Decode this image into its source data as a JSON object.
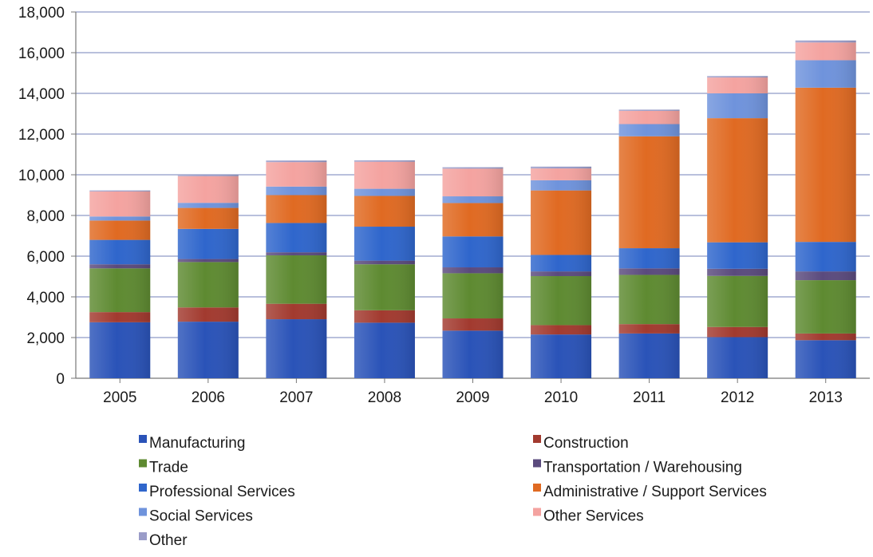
{
  "chart_data": {
    "type": "bar",
    "stacked": true,
    "categories": [
      "2005",
      "2006",
      "2007",
      "2008",
      "2009",
      "2010",
      "2011",
      "2012",
      "2013"
    ],
    "series": [
      {
        "name": "Manufacturing",
        "color": "#2a53b8",
        "values": [
          2750,
          2780,
          2900,
          2730,
          2340,
          2150,
          2200,
          2020,
          1870
        ]
      },
      {
        "name": "Construction",
        "color": "#a23a2f",
        "values": [
          500,
          700,
          760,
          610,
          600,
          460,
          460,
          500,
          330
        ]
      },
      {
        "name": "Trade",
        "color": "#5e8a31",
        "values": [
          2150,
          2230,
          2380,
          2260,
          2220,
          2410,
          2420,
          2510,
          2620
        ]
      },
      {
        "name": "Transportation / Warehousing",
        "color": "#5a4a7d",
        "values": [
          200,
          150,
          150,
          180,
          290,
          230,
          320,
          350,
          430
        ]
      },
      {
        "name": "Professional Services",
        "color": "#2f66cc",
        "values": [
          1200,
          1480,
          1440,
          1670,
          1520,
          810,
          990,
          1300,
          1450
        ]
      },
      {
        "name": "Administrative / Support Services",
        "color": "#e06a22",
        "values": [
          950,
          1030,
          1370,
          1510,
          1640,
          3170,
          5500,
          6100,
          7580
        ]
      },
      {
        "name": "Social Services",
        "color": "#6f93dc",
        "values": [
          200,
          250,
          420,
          350,
          330,
          500,
          600,
          1220,
          1350
        ]
      },
      {
        "name": "Other Services",
        "color": "#f4a3a0",
        "values": [
          1230,
          1310,
          1200,
          1330,
          1360,
          580,
          650,
          780,
          870
        ]
      },
      {
        "name": "Other",
        "color": "#9a9cc8",
        "values": [
          50,
          70,
          80,
          70,
          70,
          90,
          60,
          70,
          100
        ]
      }
    ],
    "ylim": [
      0,
      18000
    ],
    "yticks": [
      "0",
      "2,000",
      "4,000",
      "6,000",
      "8,000",
      "10,000",
      "12,000",
      "14,000",
      "16,000",
      "18,000"
    ],
    "grid": true,
    "legend_position": "bottom",
    "legend_columns": [
      [
        "Manufacturing",
        "Trade",
        "Professional Services",
        "Social Services",
        "Other"
      ],
      [
        "Construction",
        "Transportation / Warehousing",
        "Administrative / Support Services",
        "Other Services"
      ]
    ]
  }
}
